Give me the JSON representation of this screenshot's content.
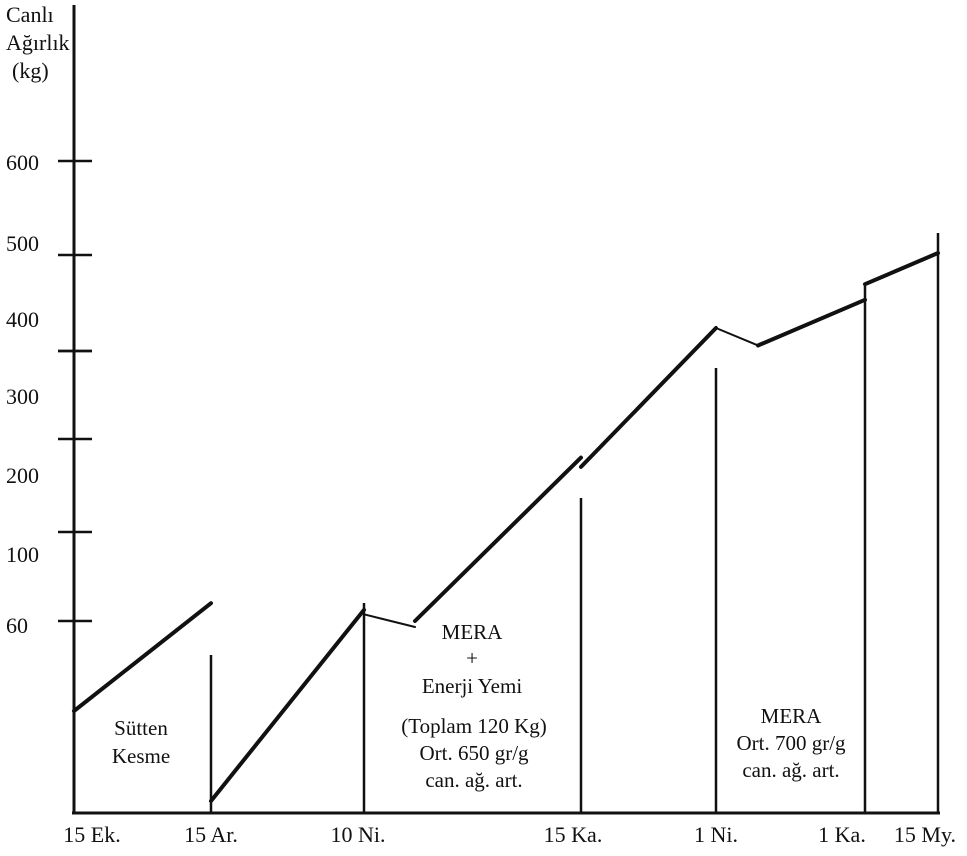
{
  "chart_data": {
    "type": "line",
    "ylabel": [
      "Canlı",
      "Ağırlık",
      "(kg)"
    ],
    "x_ticks": [
      "15 Ek.",
      "15 Ar.",
      "10 Ni.",
      "15 Ka.",
      "1 Ni.",
      "1 Ka.",
      "15 My."
    ],
    "y_ticks": [
      "60",
      "100",
      "200",
      "300",
      "400",
      "500",
      "600"
    ],
    "series": [
      {
        "segments": [
          [
            [
              "15 Ek.",
              45
            ],
            [
              "15 Ar.",
              68
            ]
          ],
          [
            [
              "15 Ar.",
              30
            ],
            [
              "10 Ni.",
              65
            ]
          ],
          [
            [
              "10 Ni.",
              63
            ],
            [
              "10 Ni.+",
              59
            ]
          ],
          [
            [
              "10 Ni.+",
              60
            ],
            [
              "15 Ka.",
              180
            ]
          ],
          [
            [
              "15 Ka.",
              170
            ],
            [
              "1 Ni.",
              350
            ]
          ],
          [
            [
              "1 Ni.",
              350
            ],
            [
              "1 Ni.+",
              312
            ]
          ],
          [
            [
              "1 Ni.+",
              312
            ],
            [
              "1 Ka.",
              410
            ]
          ],
          [
            [
              "1 Ka.",
              440
            ],
            [
              "15 My.",
              500
            ]
          ]
        ]
      }
    ],
    "annotations": [
      {
        "lines": [
          "Sütten",
          "Kesme"
        ]
      },
      {
        "lines": [
          "MERA",
          "+",
          "Enerji Yemi"
        ]
      },
      {
        "lines": [
          "(Toplam 120 Kg)",
          "Ort. 650 gr/g",
          "can. ağ. art."
        ]
      },
      {
        "lines": [
          "MERA",
          "Ort. 700 gr/g",
          "can. ağ. art."
        ]
      }
    ]
  }
}
